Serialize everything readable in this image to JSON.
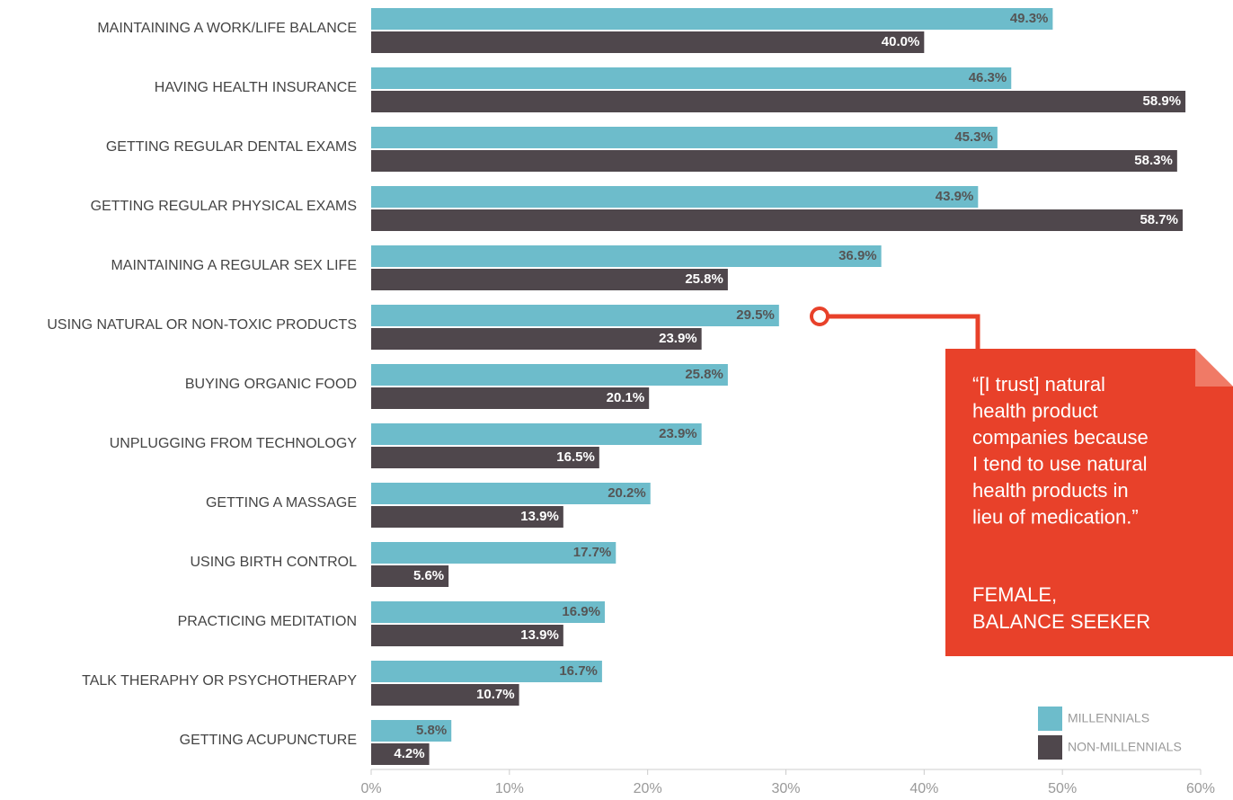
{
  "chart_data": {
    "type": "bar",
    "orientation": "horizontal",
    "categories": [
      "MAINTAINING A WORK/LIFE BALANCE",
      "HAVING HEALTH INSURANCE",
      "GETTING REGULAR DENTAL EXAMS",
      "GETTING REGULAR PHYSICAL EXAMS",
      "MAINTAINING A REGULAR SEX LIFE",
      "USING NATURAL OR NON-TOXIC PRODUCTS",
      "BUYING ORGANIC FOOD",
      "UNPLUGGING FROM TECHNOLOGY",
      "GETTING A MASSAGE",
      "USING BIRTH CONTROL",
      "PRACTICING MEDITATION",
      "TALK THERAPHY OR PSYCHOTHERAPY",
      "GETTING ACUPUNCTURE"
    ],
    "series": [
      {
        "name": "MILLENNIALS",
        "color": "#6dbccb",
        "values": [
          49.3,
          46.3,
          45.3,
          43.9,
          36.9,
          29.5,
          25.8,
          23.9,
          20.2,
          17.7,
          16.9,
          16.7,
          5.8
        ],
        "value_labels": [
          "49.3%",
          "46.3%",
          "45.3%",
          "43.9%",
          "36.9%",
          "29.5%",
          "25.8%",
          "23.9%",
          "20.2%",
          "17.7%",
          "16.9%",
          "16.7%",
          "5.8%"
        ]
      },
      {
        "name": "NON-MILLENNIALS",
        "color": "#4f474c",
        "values": [
          40.0,
          58.9,
          58.3,
          58.7,
          25.8,
          23.9,
          20.1,
          16.5,
          13.9,
          5.6,
          13.9,
          10.7,
          4.2
        ],
        "value_labels": [
          "40.0%",
          "58.9%",
          "58.3%",
          "58.7%",
          "25.8%",
          "23.9%",
          "20.1%",
          "16.5%",
          "13.9%",
          "5.6%",
          "13.9%",
          "10.7%",
          "4.2%"
        ]
      }
    ],
    "xlim": [
      0,
      60
    ],
    "xticks": [
      {
        "value": 0,
        "label": "0%"
      },
      {
        "value": 10,
        "label": "10%"
      },
      {
        "value": 20,
        "label": "20%"
      },
      {
        "value": 30,
        "label": "30%"
      },
      {
        "value": 40,
        "label": "40%"
      },
      {
        "value": 50,
        "label": "50%"
      },
      {
        "value": 60,
        "label": "60%"
      }
    ],
    "grid": false,
    "legend": "lower right",
    "annotation": {
      "quote": [
        "“[I trust] natural",
        "health product",
        "companies because",
        "I tend to use natural",
        "health products in",
        "lieu of medication.”"
      ],
      "attribution": [
        "FEMALE,",
        "BALANCE SEEKER"
      ]
    }
  }
}
